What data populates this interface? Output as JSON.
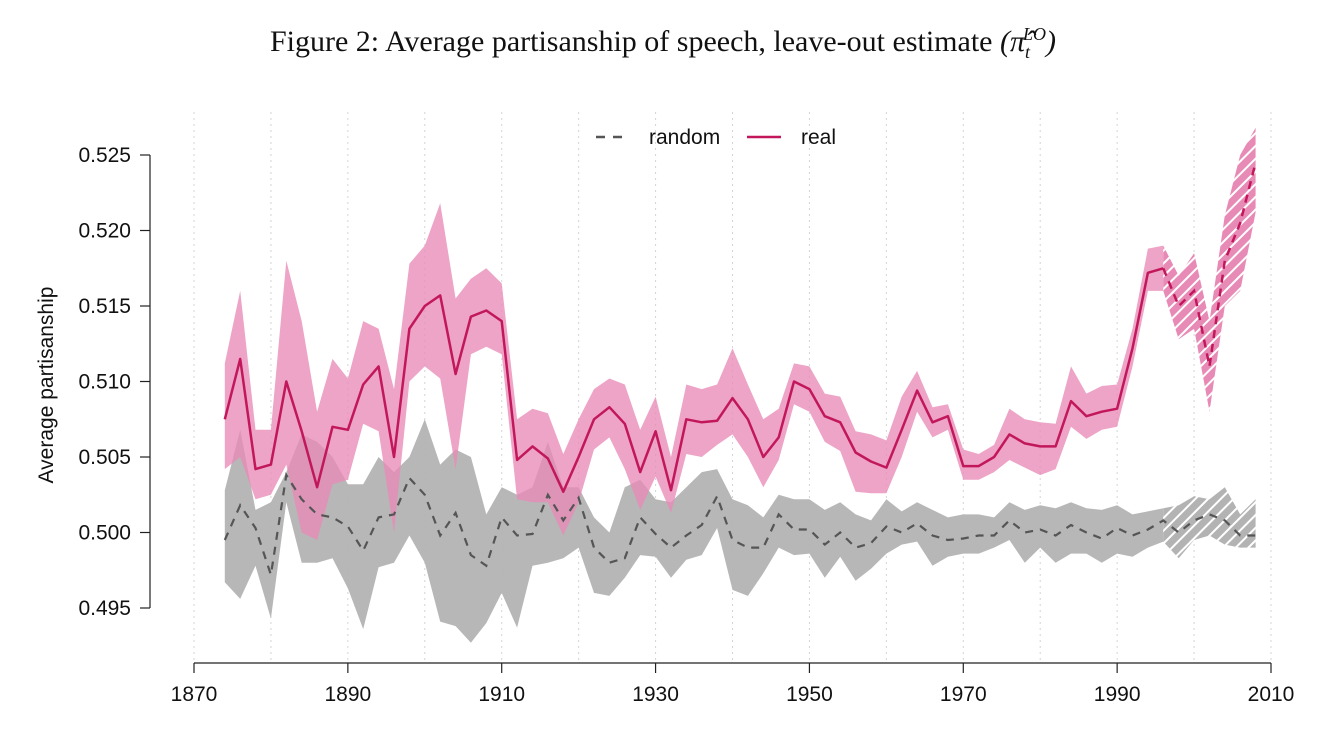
{
  "title": {
    "prefix": "Figure 2: Average partisanship of speech, leave-out estimate",
    "math": "(π̂",
    "math_sub": "t",
    "math_sup": "LO",
    "math_close": ")"
  },
  "chart_data": {
    "type": "line",
    "title": "Figure 2: Average partisanship of speech, leave-out estimate (π̂_t^LO)",
    "xlabel": "",
    "ylabel": "Average partisanship",
    "xlim": [
      1866,
      2010
    ],
    "ylim": [
      0.4925,
      0.5265
    ],
    "x_ticks": [
      1870,
      1890,
      1910,
      1930,
      1950,
      1970,
      1990,
      2010
    ],
    "x_tick_labels": [
      "1870",
      "1890",
      "1910",
      "1930",
      "1950",
      "1970",
      "1990",
      "2010"
    ],
    "y_ticks": [
      0.495,
      0.5,
      0.505,
      0.51,
      0.515,
      0.52,
      0.525
    ],
    "y_tick_labels": [
      "0.495",
      "0.500",
      "0.505",
      "0.510",
      "0.515",
      "0.520",
      "0.525"
    ],
    "grid": "vertical dotted",
    "legend_position": "top-center",
    "hatched_from_year": 1996,
    "colors": {
      "real_line": "#c2185b",
      "real_band": "#e88ab6",
      "random_line": "#555555",
      "random_band": "#b3b3b3"
    },
    "x": [
      1874,
      1876,
      1878,
      1880,
      1882,
      1884,
      1886,
      1888,
      1890,
      1892,
      1894,
      1896,
      1898,
      1900,
      1902,
      1904,
      1906,
      1908,
      1910,
      1912,
      1914,
      1916,
      1918,
      1920,
      1922,
      1924,
      1926,
      1928,
      1930,
      1932,
      1934,
      1936,
      1938,
      1940,
      1942,
      1944,
      1946,
      1948,
      1950,
      1952,
      1954,
      1956,
      1958,
      1960,
      1962,
      1964,
      1966,
      1968,
      1970,
      1972,
      1974,
      1976,
      1978,
      1980,
      1982,
      1984,
      1986,
      1988,
      1990,
      1992,
      1994,
      1996,
      1998,
      2000,
      2002,
      2004,
      2006,
      2008
    ],
    "series": [
      {
        "name": "random",
        "line": "dashed",
        "values": [
          0.4995,
          0.5018,
          0.5003,
          0.4972,
          0.5038,
          0.5022,
          0.5012,
          0.501,
          0.5004,
          0.4988,
          0.501,
          0.5012,
          0.5036,
          0.5025,
          0.4998,
          0.5013,
          0.4985,
          0.4978,
          0.501,
          0.4998,
          0.4999,
          0.5025,
          0.5008,
          0.5023,
          0.499,
          0.498,
          0.4983,
          0.501,
          0.4999,
          0.499,
          0.4998,
          0.5005,
          0.5024,
          0.4995,
          0.499,
          0.499,
          0.5012,
          0.5002,
          0.5002,
          0.4992,
          0.5,
          0.499,
          0.4993,
          0.5004,
          0.5,
          0.5006,
          0.4998,
          0.4995,
          0.4996,
          0.4998,
          0.4998,
          0.5008,
          0.5,
          0.5002,
          0.4998,
          0.5005,
          0.5,
          0.4996,
          0.5003,
          0.4998,
          0.5002,
          0.5008,
          0.5,
          0.5008,
          0.5012,
          0.5008,
          0.4998,
          0.4998
        ],
        "lower": [
          0.4967,
          0.4956,
          0.4978,
          0.4943,
          0.502,
          0.498,
          0.498,
          0.4983,
          0.4963,
          0.4936,
          0.4977,
          0.498,
          0.4998,
          0.498,
          0.4941,
          0.4938,
          0.4927,
          0.494,
          0.496,
          0.4937,
          0.4978,
          0.498,
          0.4983,
          0.499,
          0.496,
          0.4958,
          0.497,
          0.4985,
          0.4984,
          0.497,
          0.4982,
          0.4985,
          0.5003,
          0.4962,
          0.4958,
          0.4973,
          0.499,
          0.4985,
          0.4986,
          0.497,
          0.4984,
          0.4968,
          0.4976,
          0.4986,
          0.4992,
          0.4994,
          0.4978,
          0.4984,
          0.4986,
          0.4986,
          0.499,
          0.4995,
          0.498,
          0.499,
          0.498,
          0.4986,
          0.4986,
          0.498,
          0.4986,
          0.4984,
          0.499,
          0.4994,
          0.4983,
          0.4995,
          0.4998,
          0.4992,
          0.499,
          0.499
        ],
        "upper": [
          0.5028,
          0.5068,
          0.5015,
          0.502,
          0.504,
          0.5065,
          0.506,
          0.505,
          0.5032,
          0.5032,
          0.505,
          0.504,
          0.505,
          0.5075,
          0.5045,
          0.5055,
          0.505,
          0.5012,
          0.503,
          0.5025,
          0.503,
          0.506,
          0.503,
          0.503,
          0.501,
          0.5,
          0.503,
          0.5035,
          0.5022,
          0.502,
          0.503,
          0.504,
          0.5042,
          0.5022,
          0.5018,
          0.501,
          0.5025,
          0.5022,
          0.5022,
          0.5015,
          0.502,
          0.5012,
          0.5008,
          0.5022,
          0.5014,
          0.502,
          0.5015,
          0.501,
          0.5012,
          0.5012,
          0.501,
          0.502,
          0.5015,
          0.5018,
          0.5016,
          0.502,
          0.5016,
          0.5015,
          0.5018,
          0.5012,
          0.5014,
          0.5016,
          0.5018,
          0.5024,
          0.5022,
          0.503,
          0.5012,
          0.5022
        ]
      },
      {
        "name": "real",
        "line": "solid",
        "values": [
          0.5075,
          0.5115,
          0.5042,
          0.5045,
          0.51,
          0.5067,
          0.503,
          0.507,
          0.5068,
          0.5098,
          0.511,
          0.505,
          0.5135,
          0.515,
          0.5157,
          0.5105,
          0.5143,
          0.5147,
          0.514,
          0.5048,
          0.5057,
          0.5049,
          0.5027,
          0.505,
          0.5075,
          0.5083,
          0.5072,
          0.504,
          0.5067,
          0.5028,
          0.5075,
          0.5073,
          0.5074,
          0.5089,
          0.5075,
          0.505,
          0.5063,
          0.51,
          0.5095,
          0.5077,
          0.5073,
          0.5053,
          0.5047,
          0.5043,
          0.5068,
          0.5094,
          0.5073,
          0.5077,
          0.5044,
          0.5044,
          0.505,
          0.5065,
          0.5059,
          0.5057,
          0.5057,
          0.5087,
          0.5077,
          0.508,
          0.5082,
          0.5122,
          0.5172,
          0.5175,
          0.515,
          0.516,
          0.511,
          0.518,
          0.5205,
          0.5245
        ],
        "lower": [
          0.5042,
          0.505,
          0.5022,
          0.5025,
          0.5045,
          0.5,
          0.4995,
          0.5032,
          0.5035,
          0.5072,
          0.5067,
          0.5,
          0.51,
          0.511,
          0.5102,
          0.5042,
          0.5118,
          0.5123,
          0.5118,
          0.5022,
          0.502,
          0.502,
          0.4998,
          0.502,
          0.5055,
          0.5063,
          0.5042,
          0.5015,
          0.5037,
          0.5013,
          0.5052,
          0.505,
          0.5058,
          0.5065,
          0.505,
          0.503,
          0.5048,
          0.5085,
          0.508,
          0.506,
          0.5054,
          0.5027,
          0.5026,
          0.5026,
          0.505,
          0.508,
          0.5063,
          0.5068,
          0.5035,
          0.5035,
          0.504,
          0.5048,
          0.5043,
          0.5038,
          0.5042,
          0.507,
          0.5062,
          0.5068,
          0.507,
          0.511,
          0.516,
          0.516,
          0.5128,
          0.5135,
          0.508,
          0.515,
          0.516,
          0.5212
        ],
        "upper": [
          0.5112,
          0.516,
          0.5068,
          0.5068,
          0.518,
          0.514,
          0.508,
          0.5115,
          0.5102,
          0.514,
          0.5135,
          0.5095,
          0.5178,
          0.519,
          0.5218,
          0.5155,
          0.5168,
          0.5175,
          0.5165,
          0.5075,
          0.5082,
          0.5079,
          0.5052,
          0.5075,
          0.5095,
          0.5102,
          0.5098,
          0.5068,
          0.509,
          0.505,
          0.5098,
          0.5095,
          0.5098,
          0.5122,
          0.5098,
          0.5075,
          0.5082,
          0.5112,
          0.511,
          0.5092,
          0.509,
          0.5067,
          0.5065,
          0.5061,
          0.509,
          0.5107,
          0.5083,
          0.5085,
          0.5055,
          0.5052,
          0.5058,
          0.5082,
          0.5075,
          0.5073,
          0.5072,
          0.511,
          0.5092,
          0.5097,
          0.5098,
          0.5135,
          0.5188,
          0.519,
          0.517,
          0.5185,
          0.514,
          0.521,
          0.525,
          0.5268
        ]
      }
    ]
  }
}
